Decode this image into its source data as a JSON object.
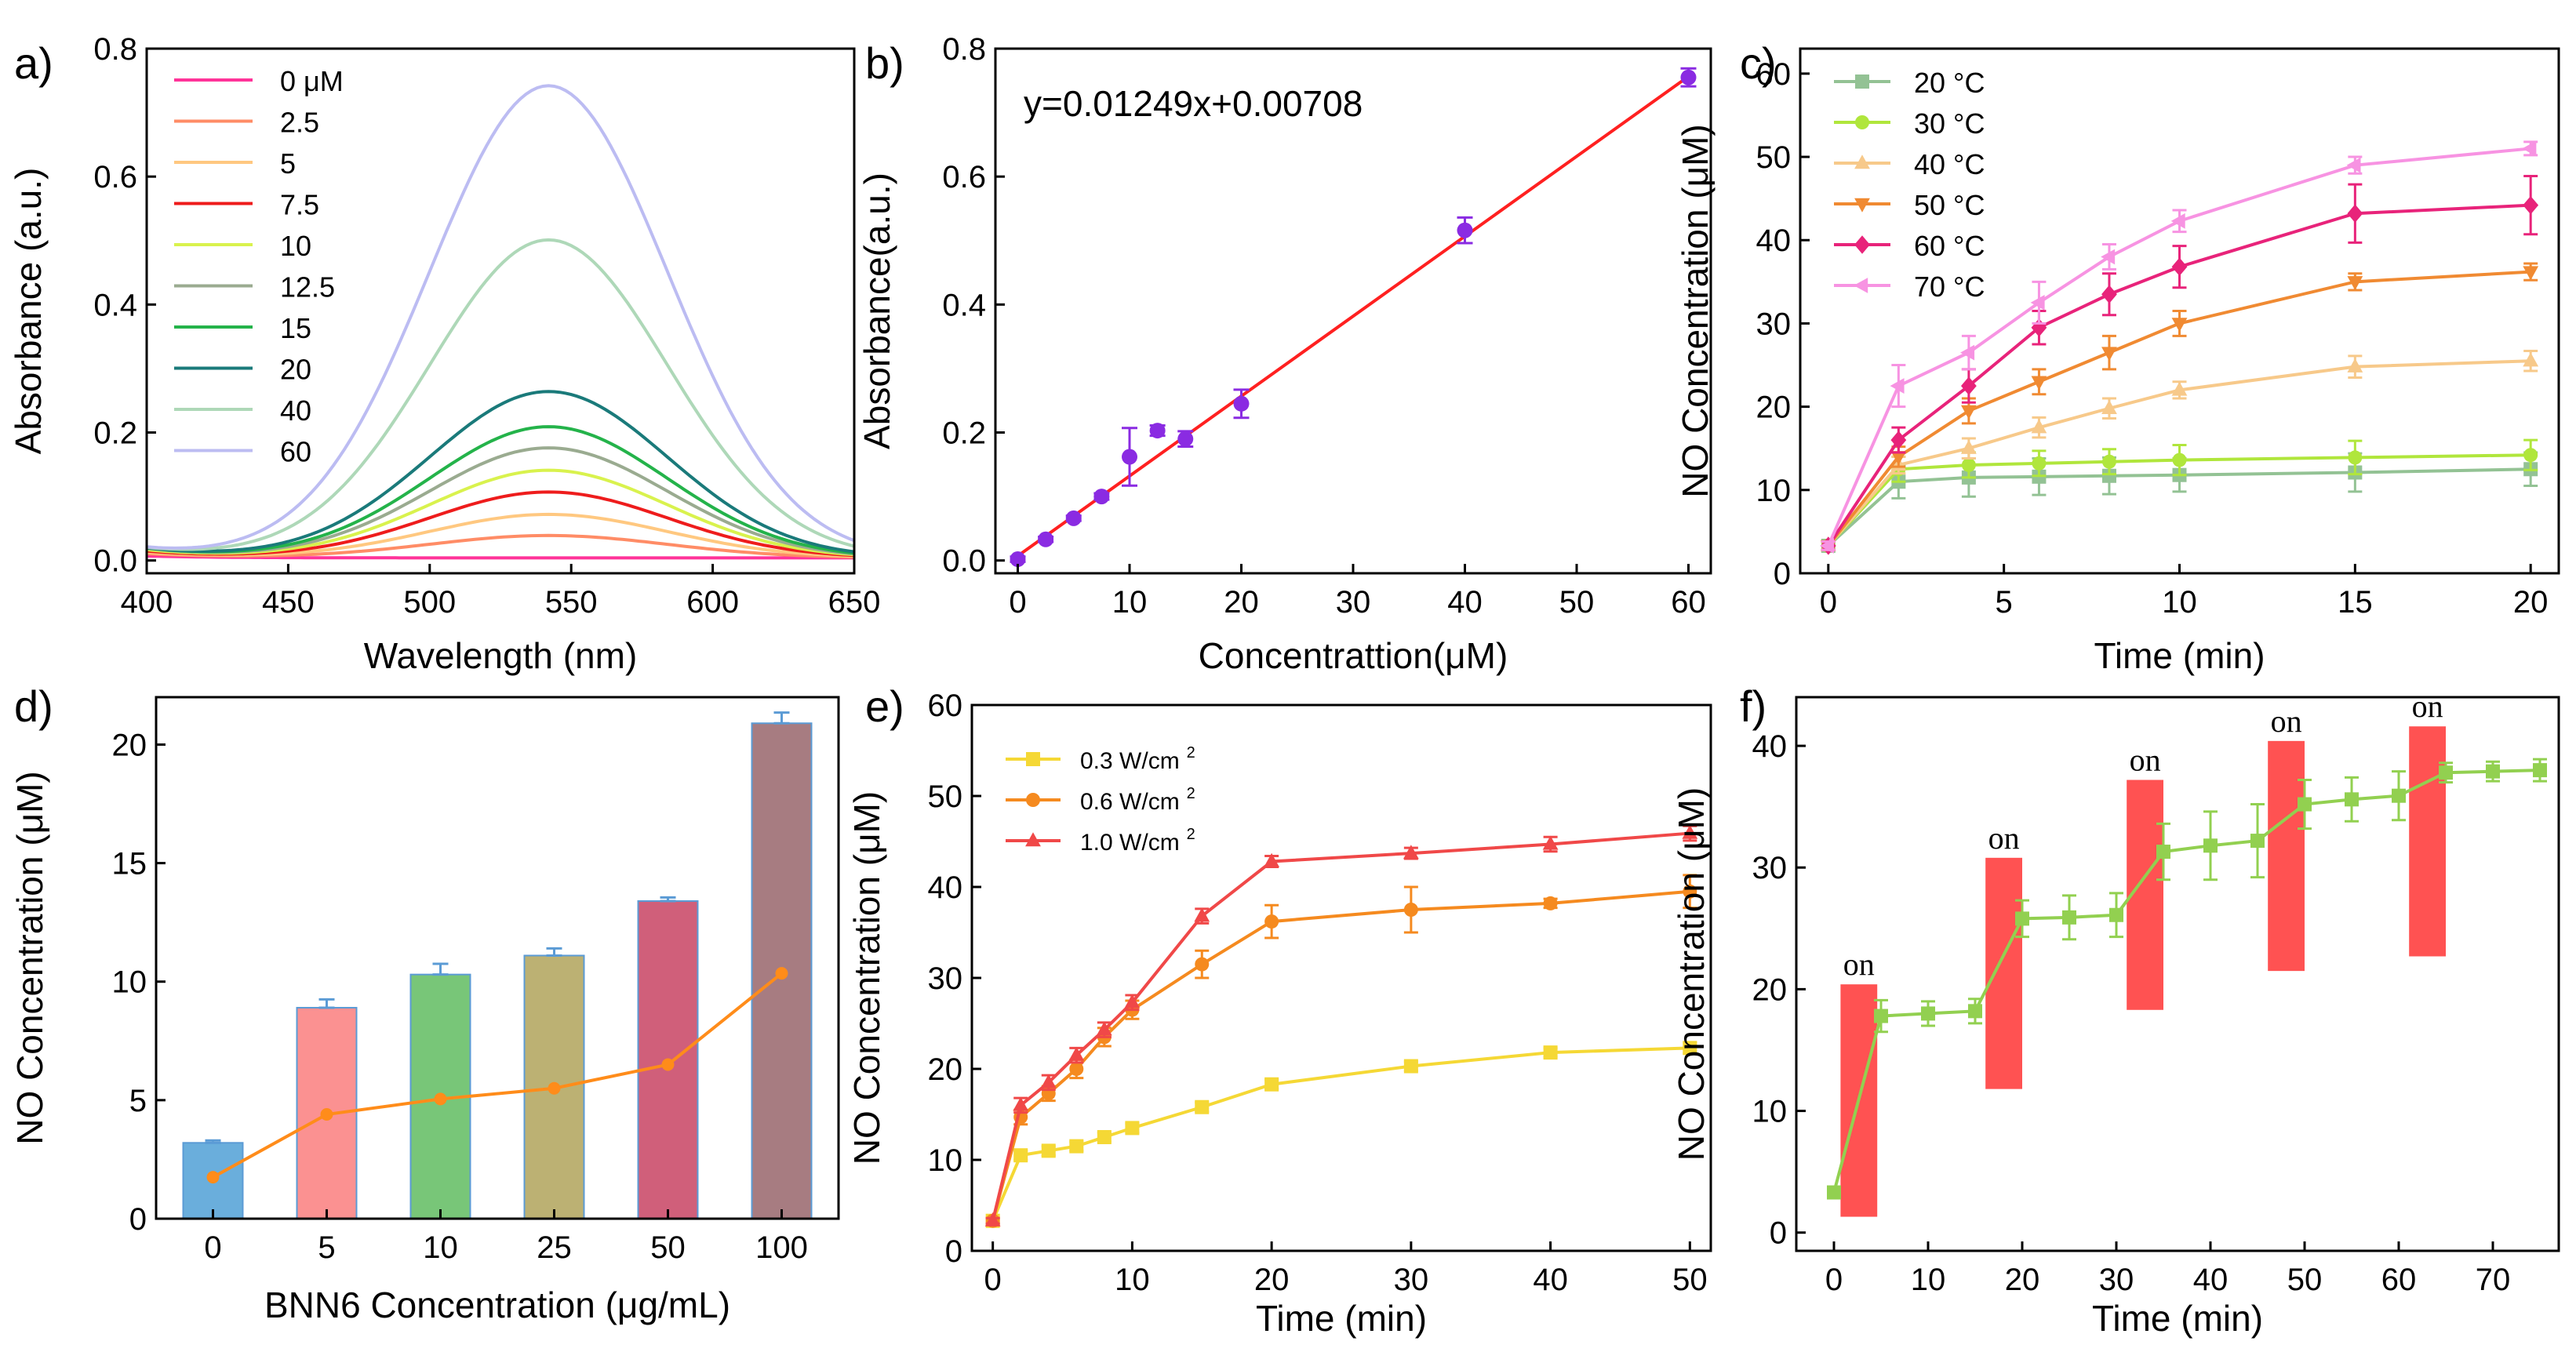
{
  "chart_data": [
    {
      "id": "a",
      "panel_label": "a)",
      "type": "line",
      "xlabel": "Wavelength (nm)",
      "ylabel": "Absorbance (a.u.)",
      "xlim": [
        400,
        650
      ],
      "ylim": [
        -0.02,
        0.8
      ],
      "xticks": [
        400,
        450,
        500,
        550,
        600,
        650
      ],
      "yticks": [
        0.0,
        0.2,
        0.4,
        0.6,
        0.8
      ],
      "ytick_labels": [
        "0.0",
        "0.2",
        "0.4",
        "0.6",
        "0.8"
      ],
      "legend_position": "top-left",
      "peak_wavelength": 542,
      "peak_width": 42,
      "series": [
        {
          "name": "0 μM",
          "peak": 0.0,
          "color": "#ff3399"
        },
        {
          "name": "2.5",
          "peak": 0.035,
          "color": "#ff8c66"
        },
        {
          "name": "5",
          "peak": 0.068,
          "color": "#ffc880"
        },
        {
          "name": "7.5",
          "peak": 0.103,
          "color": "#ee1c1c"
        },
        {
          "name": "10",
          "peak": 0.137,
          "color": "#d9f24d"
        },
        {
          "name": "12.5",
          "peak": 0.172,
          "color": "#9aab90"
        },
        {
          "name": "15",
          "peak": 0.205,
          "color": "#24b34a"
        },
        {
          "name": "20",
          "peak": 0.26,
          "color": "#1a7a7a"
        },
        {
          "name": "40",
          "peak": 0.497,
          "color": "#aed8b8"
        },
        {
          "name": "60",
          "peak": 0.738,
          "color": "#bcbcf2"
        }
      ]
    },
    {
      "id": "b",
      "panel_label": "b)",
      "type": "scatter",
      "xlabel": "Concentrattion(μM)",
      "ylabel": "Absorbance(a.u.)",
      "xlim": [
        -2,
        62
      ],
      "ylim": [
        -0.02,
        0.8
      ],
      "xticks": [
        0,
        10,
        20,
        30,
        40,
        50,
        60
      ],
      "yticks": [
        0.0,
        0.2,
        0.4,
        0.6,
        0.8
      ],
      "ytick_labels": [
        "0.0",
        "0.2",
        "0.4",
        "0.6",
        "0.8"
      ],
      "equation": "y=0.01249x+0.00708",
      "fit": {
        "slope": 0.01249,
        "intercept": 0.00708,
        "x_range": [
          0,
          60
        ],
        "color": "#ff2020"
      },
      "marker_color": "#8a2be2",
      "points": [
        {
          "x": 0,
          "y": 0.002,
          "err": 0.004
        },
        {
          "x": 2.5,
          "y": 0.033,
          "err": 0.004
        },
        {
          "x": 5,
          "y": 0.066,
          "err": 0.004
        },
        {
          "x": 7.5,
          "y": 0.1,
          "err": 0.005
        },
        {
          "x": 10,
          "y": 0.162,
          "err": 0.045
        },
        {
          "x": 12.5,
          "y": 0.203,
          "err": 0.008
        },
        {
          "x": 15,
          "y": 0.19,
          "err": 0.012
        },
        {
          "x": 20,
          "y": 0.245,
          "err": 0.022
        },
        {
          "x": 40,
          "y": 0.516,
          "err": 0.02
        },
        {
          "x": 60,
          "y": 0.755,
          "err": 0.014
        }
      ]
    },
    {
      "id": "c",
      "panel_label": "c)",
      "type": "line",
      "xlabel": "Time (min)",
      "ylabel": "NO Concentration (μM)",
      "xlim": [
        -0.8,
        20.8
      ],
      "ylim": [
        0,
        63
      ],
      "xticks": [
        0,
        5,
        10,
        15,
        20
      ],
      "yticks": [
        0,
        10,
        20,
        30,
        40,
        50,
        60
      ],
      "legend_position": "top-left",
      "x": [
        0,
        2,
        4,
        6,
        8,
        10,
        15,
        20
      ],
      "series": [
        {
          "name": "20 °C",
          "marker": "square",
          "color": "#93c294",
          "values": [
            3.3,
            11,
            11.5,
            11.6,
            11.7,
            11.8,
            12.1,
            12.5
          ],
          "errors": [
            0.5,
            2,
            2.3,
            2.2,
            2.2,
            2,
            2.3,
            2
          ]
        },
        {
          "name": "30 °C",
          "marker": "circle",
          "color": "#b0e63c",
          "values": [
            3.3,
            12.5,
            13,
            13.2,
            13.4,
            13.6,
            13.9,
            14.2
          ],
          "errors": [
            0.5,
            1.5,
            1.5,
            1.5,
            1.5,
            1.8,
            2,
            1.8
          ]
        },
        {
          "name": "40 °C",
          "marker": "triangle-up",
          "color": "#f7c98a",
          "values": [
            3.3,
            13,
            15,
            17.5,
            19.8,
            22,
            24.8,
            25.5
          ],
          "errors": [
            0.5,
            1,
            1.2,
            1.2,
            1.2,
            1,
            1.3,
            1.2
          ]
        },
        {
          "name": "50 °C",
          "marker": "triangle-down",
          "color": "#f08a32",
          "values": [
            3.3,
            14,
            19.5,
            23,
            26.5,
            30,
            35,
            36.2
          ],
          "errors": [
            0.5,
            1.2,
            1.5,
            1.5,
            2,
            1.5,
            1,
            1
          ]
        },
        {
          "name": "60 °C",
          "marker": "diamond",
          "color": "#e8237a",
          "values": [
            3.3,
            16,
            22.5,
            29.5,
            33.5,
            36.8,
            43.2,
            44.2
          ],
          "errors": [
            0.5,
            1.5,
            2,
            2,
            2.5,
            2.5,
            3.5,
            3.5
          ]
        },
        {
          "name": "70 °C",
          "marker": "triangle-left",
          "color": "#f793e2",
          "values": [
            3.3,
            22.5,
            26.5,
            32.5,
            38,
            42.3,
            49,
            51
          ],
          "errors": [
            0.5,
            2.5,
            2,
            2.5,
            1.5,
            1.3,
            1,
            0.8
          ]
        }
      ]
    },
    {
      "id": "d",
      "panel_label": "d)",
      "type": "bar",
      "xlabel": "BNN6 Concentration  (μg/mL)",
      "ylabel": "NO Concentration (μM)",
      "ylim": [
        0,
        22
      ],
      "yticks": [
        0,
        5,
        10,
        15,
        20
      ],
      "categories": [
        "0",
        "5",
        "10",
        "25",
        "50",
        "100"
      ],
      "values": [
        3.2,
        8.9,
        10.3,
        11.1,
        13.4,
        20.9
      ],
      "errors": [
        0.1,
        0.35,
        0.45,
        0.3,
        0.15,
        0.45
      ],
      "bar_colors": [
        "#6aaedc",
        "#fb9191",
        "#78c678",
        "#bcb173",
        "#d05f7a",
        "#a77c81"
      ],
      "line_values": [
        1.75,
        4.4,
        5.05,
        5.5,
        6.5,
        10.35
      ],
      "line_color": "#ff8c1a"
    },
    {
      "id": "e",
      "panel_label": "e)",
      "type": "line",
      "xlabel": "Time (min)",
      "ylabel": "NO Concentration (μM)",
      "xlim": [
        -1.5,
        51.5
      ],
      "ylim": [
        0,
        60
      ],
      "xticks": [
        0,
        10,
        20,
        30,
        40,
        50
      ],
      "yticks": [
        0,
        10,
        20,
        30,
        40,
        50,
        60
      ],
      "legend_position": "top-left",
      "unit_suffix": "2",
      "x": [
        0,
        2,
        4,
        6,
        8,
        10,
        15,
        20,
        30,
        40,
        50
      ],
      "series": [
        {
          "name": "0.3 W/cm",
          "marker": "square",
          "color": "#f5d835",
          "values": [
            3.3,
            10.5,
            11.0,
            11.5,
            12.5,
            13.5,
            15.8,
            18.3,
            20.3,
            21.8,
            22.3
          ],
          "errors": [
            0.3,
            0.5,
            0.5,
            0.5,
            0.5,
            0.5,
            0.5,
            0.5,
            0.5,
            0.5,
            0.6
          ]
        },
        {
          "name": "0.6 W/cm",
          "marker": "circle",
          "color": "#f58a1f",
          "values": [
            3.3,
            14.7,
            17.3,
            20.0,
            23.5,
            26.5,
            31.5,
            36.2,
            37.5,
            38.2,
            39.5
          ],
          "errors": [
            0.3,
            0.8,
            0.8,
            1.0,
            1.0,
            1.0,
            1.5,
            1.8,
            2.5,
            0.5,
            1.8
          ]
        },
        {
          "name": "1.0 W/cm",
          "marker": "triangle-up",
          "color": "#f04848",
          "values": [
            3.3,
            16.0,
            18.5,
            21.5,
            24.3,
            27.3,
            36.8,
            42.8,
            43.7,
            44.7,
            45.9
          ],
          "errors": [
            0.3,
            0.8,
            0.8,
            0.8,
            0.8,
            0.8,
            0.8,
            0.6,
            0.6,
            0.8,
            0.8
          ]
        }
      ]
    },
    {
      "id": "f",
      "panel_label": "f)",
      "type": "line",
      "xlabel": "Time (min)",
      "ylabel": "NO Concentration (μM)",
      "xlim": [
        -4,
        77
      ],
      "ylim": [
        -1.5,
        44
      ],
      "xticks": [
        0,
        10,
        20,
        30,
        40,
        50,
        60,
        70
      ],
      "yticks": [
        0,
        10,
        20,
        30,
        40
      ],
      "line_color": "#92d050",
      "x": [
        0,
        5,
        10,
        15,
        20,
        25,
        30,
        35,
        40,
        45,
        50,
        55,
        60,
        65,
        70,
        75
      ],
      "values": [
        3.3,
        17.8,
        18.0,
        18.2,
        25.8,
        25.9,
        26.1,
        31.3,
        31.8,
        32.2,
        35.2,
        35.6,
        35.9,
        37.8,
        37.9,
        38.0
      ],
      "errors": [
        0.3,
        1.3,
        1.0,
        1.0,
        1.5,
        1.8,
        1.8,
        2.3,
        2.8,
        3.0,
        2.0,
        1.8,
        2.0,
        0.8,
        0.8,
        0.9
      ],
      "on_label": "on",
      "on_color": "#ff5252",
      "on_bars": [
        {
          "x0": 0.7,
          "x1": 4.6,
          "y0": 1.3,
          "y1": 20.4
        },
        {
          "x0": 16.1,
          "x1": 20.0,
          "y0": 11.8,
          "y1": 30.8
        },
        {
          "x0": 31.1,
          "x1": 35.0,
          "y0": 18.3,
          "y1": 37.2
        },
        {
          "x0": 46.1,
          "x1": 50.0,
          "y0": 21.5,
          "y1": 40.4
        },
        {
          "x0": 61.1,
          "x1": 65.0,
          "y0": 22.7,
          "y1": 41.6
        }
      ]
    }
  ]
}
